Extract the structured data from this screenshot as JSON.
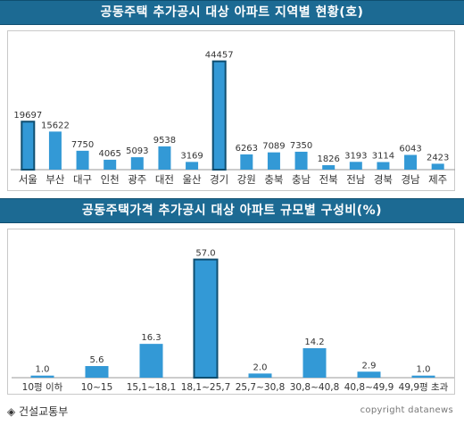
{
  "colors": {
    "bar": "#3399d6",
    "highlight_bar": "#1e73ad",
    "banner": "#1c6a93"
  },
  "footer": {
    "source": "◈ 건설교통부",
    "copyright": "copyright datanews"
  },
  "chart_data": [
    {
      "type": "bar",
      "title": "공동주택 추가공시 대상 아파트 지역별 현황(호)",
      "categories": [
        "서울",
        "부산",
        "대구",
        "인천",
        "광주",
        "대전",
        "울산",
        "경기",
        "강원",
        "충북",
        "충남",
        "전북",
        "전남",
        "경북",
        "경남",
        "제주"
      ],
      "values": [
        19697,
        15622,
        7750,
        4065,
        5093,
        9538,
        3169,
        44457,
        6263,
        7089,
        7350,
        1826,
        3193,
        3114,
        6043,
        2423
      ],
      "value_labels": [
        "19697",
        "15622",
        "7750",
        "4065",
        "5093",
        "9538",
        "3169",
        "44457",
        "6263",
        "7089",
        "7350",
        "1826",
        "3193",
        "3114",
        "6043",
        "2423"
      ],
      "highlight": [
        "서울",
        "경기"
      ],
      "ylim": [
        0,
        48000
      ],
      "grid": false
    },
    {
      "type": "bar",
      "title": "공동주택가격 추가공시 대상 아파트 규모별 구성비(%)",
      "categories": [
        "10평 이하",
        "10~15",
        "15,1~18,1",
        "18,1~25,7",
        "25,7~30,8",
        "30,8~40,8",
        "40,8~49,9",
        "49,9평 초과"
      ],
      "values": [
        1.0,
        5.6,
        16.3,
        57.0,
        2.0,
        14.2,
        2.9,
        1.0
      ],
      "value_labels": [
        "1.0",
        "5.6",
        "16.3",
        "57.0",
        "2.0",
        "14.2",
        "2.9",
        "1.0"
      ],
      "highlight": [
        "18,1~25,7"
      ],
      "ylim": [
        0,
        62
      ],
      "grid": false
    }
  ]
}
